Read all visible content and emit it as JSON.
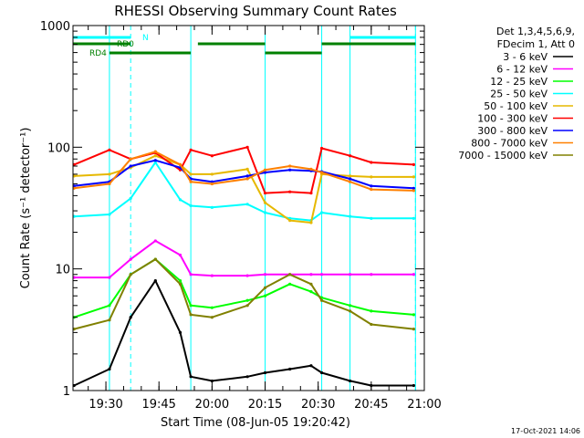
{
  "chart_data": {
    "type": "line",
    "title": "RHESSI Observing Summary Count Rates",
    "xlabel": "Start Time (08-Jun-05 19:20:42)",
    "ylabel": "Count Rate (s⁻¹ detector⁻¹)",
    "y_scale": "log",
    "ylim": [
      1,
      1000
    ],
    "xlim": [
      "19:20:42",
      "21:00:00"
    ],
    "y_ticks": [
      1,
      10,
      100,
      1000
    ],
    "y_tick_labels": [
      "1",
      "10",
      "100",
      "1000"
    ],
    "x_ticks": [
      "19:30",
      "19:45",
      "20:00",
      "20:15",
      "20:30",
      "20:45",
      "21:00"
    ],
    "legend_header": [
      "Det 1,3,4,5,6,9,",
      "FDecim 1, Att 0"
    ],
    "legend_position": "right",
    "footer_date": "17-Oct-2021 14:06",
    "segments": {
      "N": {
        "label": "N",
        "color": "#00ffff",
        "intervals": [
          [
            "19:20:42",
            "19:37:00"
          ],
          [
            "20:39:00",
            "20:57:30"
          ]
        ]
      },
      "RD0": {
        "label": "RD0",
        "color": "#008000",
        "intervals": [
          [
            "19:20:42",
            "19:37:00"
          ],
          [
            "19:56:00",
            "20:15:00"
          ],
          [
            "20:31:00",
            "20:57:30"
          ]
        ]
      },
      "RD4": {
        "label": "RD4",
        "color": "#008000",
        "intervals": [
          [
            "19:31:00",
            "19:54:00"
          ],
          [
            "20:15:00",
            "20:31:00"
          ]
        ]
      }
    },
    "vlines": {
      "solid": [
        "19:20:42",
        "19:31:00",
        "19:54:00",
        "20:15:00",
        "20:31:00",
        "20:39:00",
        "20:57:30"
      ],
      "dashed": [
        "19:37:00",
        "20:57:30"
      ],
      "color": "#00ffff"
    },
    "x": [
      "19:21",
      "19:31",
      "19:37",
      "19:44",
      "19:51",
      "19:54",
      "20:00",
      "20:10",
      "20:15",
      "20:22",
      "20:28",
      "20:31",
      "20:39",
      "20:45",
      "20:57"
    ],
    "series": [
      {
        "name": "3 - 6 keV",
        "color": "#000000",
        "values": [
          1.1,
          1.5,
          4,
          8,
          3,
          1.3,
          1.2,
          1.3,
          1.4,
          1.5,
          1.6,
          1.4,
          1.2,
          1.1,
          1.1
        ]
      },
      {
        "name": "6 - 12 keV",
        "color": "#ff00ff",
        "values": [
          8.5,
          8.5,
          12,
          17,
          13,
          9,
          8.8,
          8.8,
          9,
          9,
          9,
          9,
          9,
          9,
          9
        ]
      },
      {
        "name": "12 - 25 keV",
        "color": "#00ff00",
        "values": [
          4,
          5,
          9,
          12,
          8,
          5,
          4.8,
          5.5,
          6,
          7.5,
          6.5,
          5.8,
          5,
          4.5,
          4.2
        ]
      },
      {
        "name": "25 - 50 keV",
        "color": "#00ffff",
        "values": [
          27,
          28,
          38,
          75,
          37,
          33,
          32,
          34,
          29,
          26,
          25,
          29,
          27,
          26,
          26
        ]
      },
      {
        "name": "50 - 100 keV",
        "color": "#e6b800",
        "values": [
          58,
          60,
          68,
          85,
          72,
          60,
          60,
          66,
          35,
          25,
          24,
          60,
          58,
          57,
          57
        ]
      },
      {
        "name": "100 - 300 keV",
        "color": "#ff0000",
        "values": [
          72,
          95,
          80,
          90,
          65,
          95,
          85,
          100,
          42,
          43,
          42,
          98,
          85,
          75,
          72
        ]
      },
      {
        "name": "300 - 800 keV",
        "color": "#0000ff",
        "values": [
          48,
          52,
          70,
          78,
          68,
          55,
          52,
          58,
          62,
          65,
          64,
          63,
          55,
          48,
          46
        ]
      },
      {
        "name": "800 - 7000 keV",
        "color": "#ff8000",
        "values": [
          46,
          50,
          80,
          92,
          72,
          52,
          50,
          55,
          65,
          70,
          66,
          62,
          52,
          45,
          44
        ]
      },
      {
        "name": "7000 - 15000 keV",
        "color": "#808000",
        "values": [
          3.2,
          3.8,
          9,
          12,
          7.5,
          4.2,
          4,
          5,
          7,
          9,
          7.5,
          5.5,
          4.5,
          3.5,
          3.2
        ]
      }
    ]
  }
}
